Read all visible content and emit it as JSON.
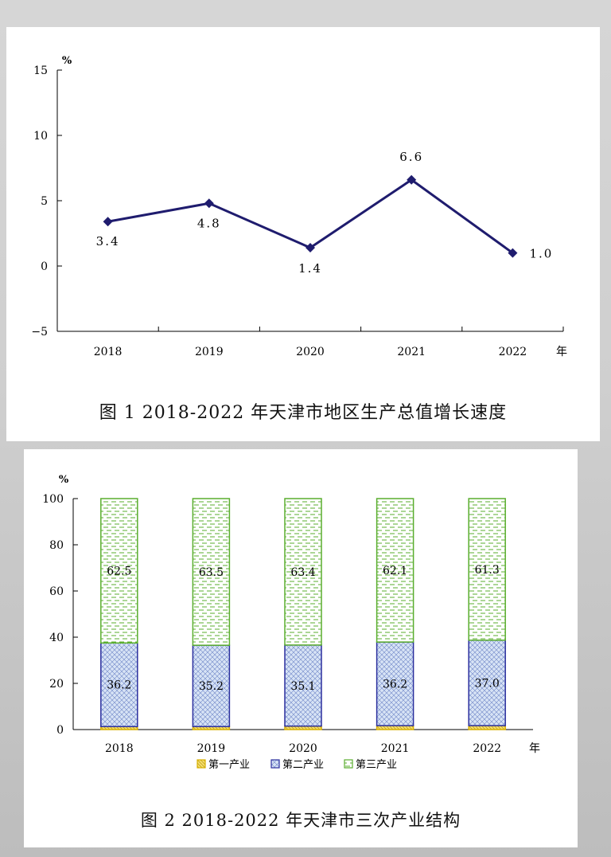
{
  "chart_data": [
    {
      "type": "line",
      "title": "图 1 2018-2022 年天津市地区生产总值增长速度",
      "y_unit": "%",
      "x_unit": "年",
      "categories": [
        "2018",
        "2019",
        "2020",
        "2021",
        "2022"
      ],
      "values": [
        3.4,
        4.8,
        1.4,
        6.6,
        1.0
      ],
      "value_labels": [
        "3.4",
        "4.8",
        "1.4",
        "6.6",
        "1.0"
      ],
      "ylim": [
        -5,
        15
      ],
      "yticks": [
        "15",
        "10",
        "5",
        "0",
        "−5"
      ],
      "series_color": "#1f1c6e",
      "grid": false
    },
    {
      "type": "bar",
      "stacked": true,
      "title": "图 2 2018-2022 年天津市三次产业结构",
      "y_unit": "%",
      "x_unit": "年",
      "categories": [
        "2018",
        "2019",
        "2020",
        "2021",
        "2022"
      ],
      "ylim": [
        0,
        100
      ],
      "yticks": [
        "100",
        "80",
        "60",
        "40",
        "20",
        "0"
      ],
      "series": [
        {
          "name": "第一产业",
          "values": [
            1.3,
            1.3,
            1.5,
            1.7,
            1.7
          ],
          "color": "#d8b000"
        },
        {
          "name": "第二产业",
          "values": [
            36.2,
            35.2,
            35.1,
            36.2,
            37.0
          ],
          "labels": [
            "36.2",
            "35.2",
            "35.1",
            "36.2",
            "37.0"
          ],
          "color": "#2b2f9e"
        },
        {
          "name": "第三产业",
          "values": [
            62.5,
            63.5,
            63.4,
            62.1,
            61.3
          ],
          "labels": [
            "62.5",
            "63.5",
            "63.4",
            "62.1",
            "61.3"
          ],
          "color": "#5aae2e"
        }
      ],
      "legend_position": "bottom",
      "grid": false
    }
  ]
}
